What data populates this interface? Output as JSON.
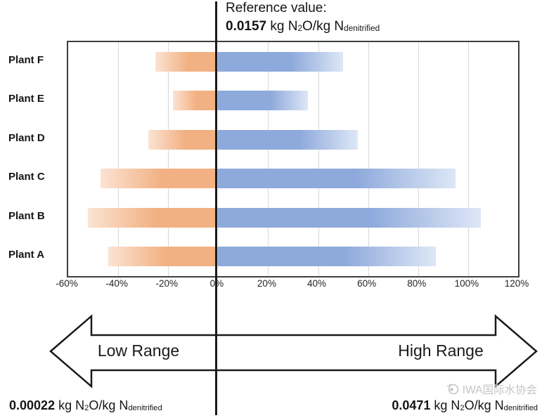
{
  "reference": {
    "label": "Reference value:",
    "value": "0.0157"
  },
  "unit": {
    "prefix": " kg N",
    "sub_two": "2",
    "middle": "O/kg N",
    "sub_denitrified": "denitrified"
  },
  "low_range": {
    "arrow_label": "Low Range",
    "value": "0.00022"
  },
  "high_range": {
    "arrow_label": "High Range",
    "value": "0.0471"
  },
  "watermark": {
    "text": "IWA国际水协会"
  },
  "colors": {
    "low_bar": "#F2B183",
    "low_bar_fade": "#FBE3D3",
    "high_bar": "#8EA9DB",
    "high_bar_fade": "#DDE7F6",
    "gridline": "#D9D9D9",
    "reference_line": "#1A1A1A"
  },
  "chart_data": {
    "type": "bar",
    "orientation": "horizontal",
    "title": "Reference value: 0.0157 kg N2O/kg Ndenitrified",
    "categories": [
      "Plant F",
      "Plant E",
      "Plant D",
      "Plant C",
      "Plant B",
      "Plant A"
    ],
    "series": [
      {
        "name": "Low Range",
        "color": "#F2B183",
        "values": [
          -25,
          -18,
          -28,
          -47,
          -52,
          -44
        ]
      },
      {
        "name": "High Range",
        "color": "#8EA9DB",
        "values": [
          50,
          36,
          56,
          95,
          105,
          87
        ]
      }
    ],
    "xlabel": "",
    "ylabel": "",
    "xlim": [
      -60,
      120
    ],
    "x_tick_values": [
      -60,
      -40,
      -20,
      0,
      20,
      40,
      60,
      80,
      100,
      120
    ],
    "x_tick_labels": [
      "-60%",
      "-40%",
      "-20%",
      "0%",
      "20%",
      "40%",
      "60%",
      "80%",
      "100%",
      "120%"
    ],
    "grid": true,
    "legend": false,
    "reference_line_x": 0,
    "annotations": {
      "low_extreme_value": "0.00022 kg N2O/kg Ndenitrified",
      "high_extreme_value": "0.0471 kg N2O/kg Ndenitrified"
    }
  }
}
